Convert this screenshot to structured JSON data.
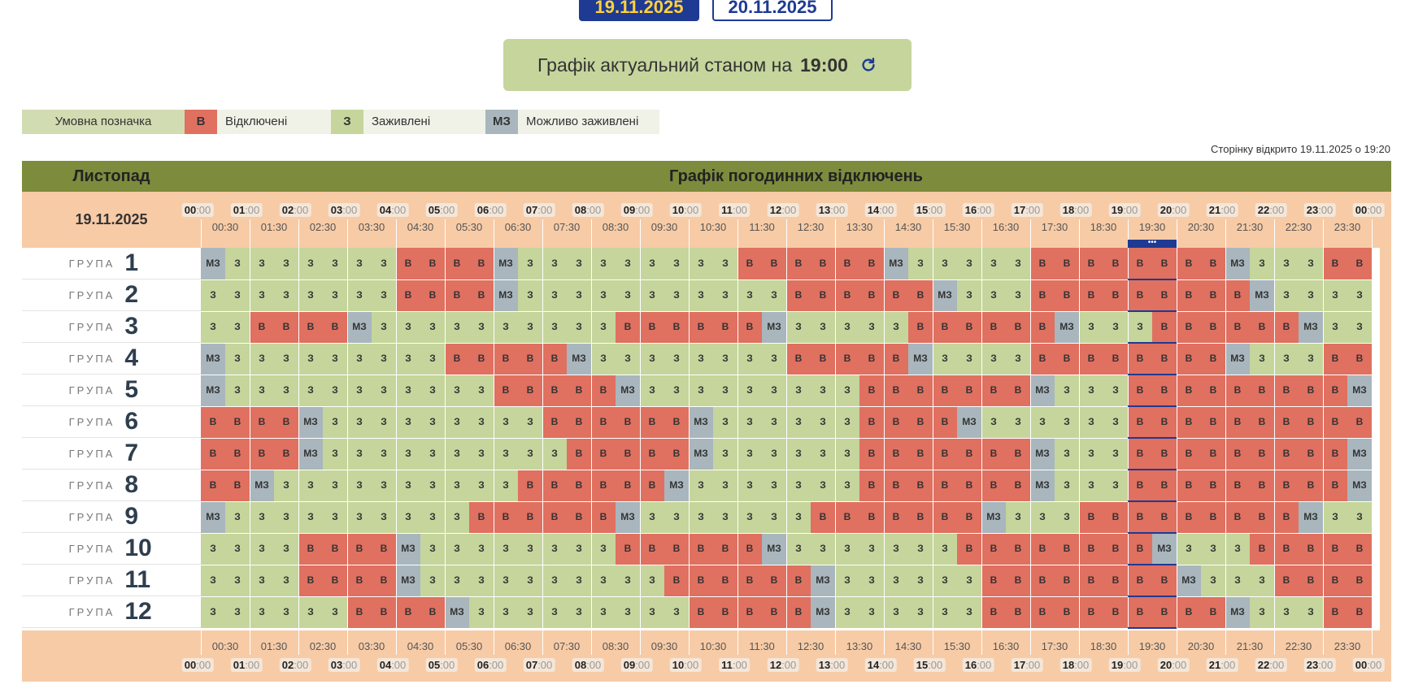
{
  "date_tabs": [
    "19.11.2025",
    "20.11.2025"
  ],
  "status": {
    "label": "Графік актуальний станом на",
    "time": "19:00",
    "icon": "refresh-icon"
  },
  "legend": {
    "title": "Умовна позначка",
    "items": [
      {
        "code": "В",
        "label": "Відключені",
        "color": "#e07060"
      },
      {
        "code": "З",
        "label": "Заживлені",
        "color": "#c5d59c"
      },
      {
        "code": "МЗ",
        "label": "Можливо заживлені",
        "color": "#a9b6bd"
      }
    ]
  },
  "opened_text": "Сторінку відкрито 19.11.2025 о 19:20",
  "table": {
    "month": "Листопад",
    "title": "Графік погодинних відключень",
    "date": "19.11.2025",
    "group_word": "ГРУПА",
    "hours": [
      "00",
      "01",
      "02",
      "03",
      "04",
      "05",
      "06",
      "07",
      "08",
      "09",
      "10",
      "11",
      "12",
      "13",
      "14",
      "15",
      "16",
      "17",
      "18",
      "19",
      "20",
      "21",
      "22",
      "23",
      "00"
    ],
    "minutes": ":00",
    "halves": [
      "00:30",
      "01:30",
      "02:30",
      "03:30",
      "04:30",
      "05:30",
      "06:30",
      "07:30",
      "08:30",
      "09:30",
      "10:30",
      "11:30",
      "12:30",
      "13:30",
      "14:30",
      "15:30",
      "16:30",
      "17:30",
      "18:30",
      "19:30",
      "20:30",
      "21:30",
      "22:30",
      "23:30"
    ],
    "current_slot": 38,
    "codes": {
      "B": "В",
      "Z": "З",
      "M": "МЗ"
    },
    "groups": [
      {
        "n": "1",
        "s": "MZZZZZZZBBBBMZZZZZZZZZBBBBBBMZZZZZBBBBBBBBMZZZBBBBMZZ"
      },
      {
        "n": "2",
        "s": "ZZZZZZZZBBBBMZZZZZZZZZZZBBBBBBMZZZBBBBBBBBBMZZZZBBB"
      },
      {
        "n": "3",
        "s": "ZZBBBBMZZZZZZZZZZBBBBBBMZZZZZBBBBBBMZZZBBBBBBMZZZZ"
      },
      {
        "n": "4",
        "s": "MZZZZZZZZZBBBBBMZZZZZZZZBBBBBMZZZZBBBBBBBBMZZZBBBBB"
      },
      {
        "n": "5",
        "s": "MZZZZZZZZZZZBBBBBMZZZZZZZZZBBBBBBBMZZZBBBBBBBBBMZZBB"
      },
      {
        "n": "6",
        "s": "BBBBMZZZZZZZZZBBBBBBMZZZZZZBBBBMZZZZZZBBBBBBBBBBMZZZ"
      },
      {
        "n": "7",
        "s": "BBBBMZZZZZZZZZZBBBBBMZZZZZZBBBBBBBMZZZBBBBBBBBBMZZZ"
      },
      {
        "n": "8",
        "s": "BBMZZZZZZZZZZBBBBBBMZZZZZZZBBBBBBBMZZZBBBBBBBBBMZZZ"
      },
      {
        "n": "9",
        "s": "MZZZZZZZZZZBBBBBBMZZZZZZZBBBBBBBMZZZBBBBBBBBBMZZZBBB"
      },
      {
        "n": "10",
        "s": "ZZZZBBBBMZZZZZZZZBBBBBBMZZZZZZZBBBBBBBBMZZZBBBBBMZZZ"
      },
      {
        "n": "11",
        "s": "ZZZZBBBBMZZZZZZZZZZBBBBBBMZZZZZZBBBBBBBBMZZZBBBBBBMZ"
      },
      {
        "n": "12",
        "s": "ZZZZZZBBBBMZZZZZZZZZBBBBBMZZZZZZBBBBBBBBBBMZZZBBBBBB"
      }
    ]
  }
}
